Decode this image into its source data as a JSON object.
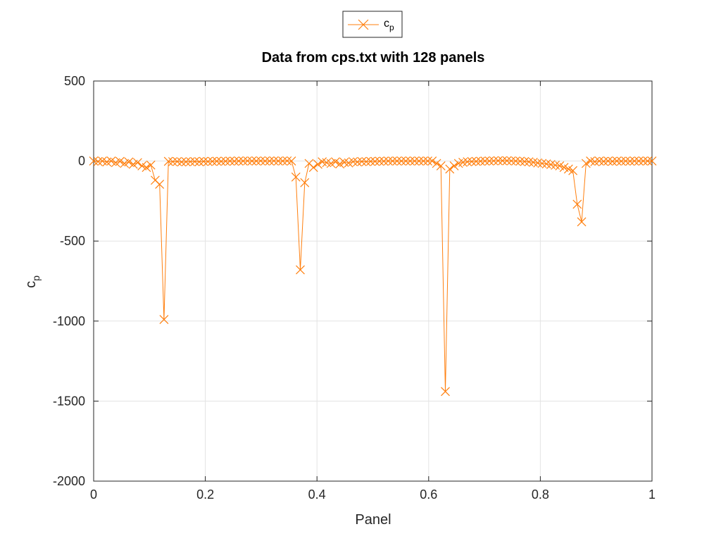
{
  "chart_data": {
    "type": "line",
    "title": "Data from cps.txt with 128 panels",
    "xlabel": "Panel",
    "ylabel": "c",
    "ylabel_sub": "p",
    "xlim": [
      0,
      1
    ],
    "ylim": [
      -2000,
      500
    ],
    "xticks": [
      0,
      0.2,
      0.4,
      0.6,
      0.8,
      1
    ],
    "xtick_labels": [
      "0",
      "0.2",
      "0.4",
      "0.6",
      "0.8",
      "1"
    ],
    "yticks": [
      500,
      0,
      -500,
      -1000,
      -1500,
      -2000
    ],
    "ytick_labels": [
      "500",
      "0",
      "-500",
      "-1000",
      "-1500",
      "-2000"
    ],
    "grid": true,
    "legend_position": "top-center (outside)",
    "series": [
      {
        "name": "c",
        "name_sub": "p",
        "color": "#ff7f0e",
        "marker": "x",
        "x": [
          0,
          0.0079,
          0.0157,
          0.0236,
          0.0315,
          0.0394,
          0.0472,
          0.0551,
          0.063,
          0.0709,
          0.0787,
          0.0866,
          0.0945,
          0.1024,
          0.1102,
          0.1181,
          0.126,
          0.1339,
          0.1417,
          0.1496,
          0.1575,
          0.1654,
          0.1732,
          0.1811,
          0.189,
          0.1969,
          0.2047,
          0.2126,
          0.2205,
          0.2283,
          0.2362,
          0.2441,
          0.252,
          0.2598,
          0.2677,
          0.2756,
          0.2835,
          0.2913,
          0.2992,
          0.3071,
          0.315,
          0.3228,
          0.3307,
          0.3386,
          0.3465,
          0.3543,
          0.3622,
          0.3701,
          0.378,
          0.3858,
          0.3937,
          0.4016,
          0.4094,
          0.4173,
          0.4252,
          0.4331,
          0.4409,
          0.4488,
          0.4567,
          0.4646,
          0.4724,
          0.4803,
          0.4882,
          0.4961,
          0.5039,
          0.5118,
          0.5197,
          0.5276,
          0.5354,
          0.5433,
          0.5512,
          0.5591,
          0.5669,
          0.5748,
          0.5827,
          0.5906,
          0.5984,
          0.6063,
          0.6142,
          0.622,
          0.6299,
          0.6378,
          0.6457,
          0.6535,
          0.6614,
          0.6693,
          0.6772,
          0.685,
          0.6929,
          0.7008,
          0.7087,
          0.7165,
          0.7244,
          0.7323,
          0.7402,
          0.748,
          0.7559,
          0.7638,
          0.7717,
          0.7795,
          0.7874,
          0.7953,
          0.8031,
          0.811,
          0.8189,
          0.8268,
          0.8346,
          0.8425,
          0.8504,
          0.8583,
          0.8661,
          0.874,
          0.8819,
          0.8898,
          0.8976,
          0.9055,
          0.9134,
          0.9213,
          0.9291,
          0.937,
          0.9449,
          0.9528,
          0.9606,
          0.9685,
          0.9764,
          0.9843,
          0.9921,
          1
        ],
        "y": [
          0,
          -3,
          0,
          -6,
          0,
          -10,
          -2,
          -15,
          -6,
          -20,
          -10,
          -30,
          -40,
          -25,
          -120,
          -145,
          -990,
          -2,
          -4,
          -3,
          -6,
          -5,
          -4,
          -3,
          -5,
          -2,
          -3,
          -2,
          -1,
          -2,
          -1,
          0,
          -1,
          0,
          0,
          1,
          0,
          0,
          1,
          0,
          0,
          1,
          0,
          0,
          1,
          0,
          -100,
          -680,
          -135,
          -15,
          -40,
          -20,
          -5,
          -10,
          -15,
          -5,
          -18,
          -8,
          -12,
          -4,
          -6,
          -3,
          -4,
          -2,
          -2,
          -1,
          -1,
          0,
          0,
          0,
          0,
          0,
          0,
          0,
          0,
          0,
          0,
          0,
          -15,
          -30,
          -1440,
          -50,
          -30,
          -15,
          -8,
          -5,
          -3,
          -2,
          -1,
          0,
          0,
          1,
          2,
          2,
          2,
          1,
          0,
          -1,
          -3,
          -5,
          -8,
          -12,
          -15,
          -18,
          -22,
          -26,
          -30,
          -40,
          -50,
          -60,
          -270,
          -380,
          -15,
          0,
          -4,
          0,
          -2,
          0,
          -2,
          0,
          -1,
          0,
          -1,
          0,
          0,
          0,
          0,
          0
        ]
      }
    ]
  }
}
